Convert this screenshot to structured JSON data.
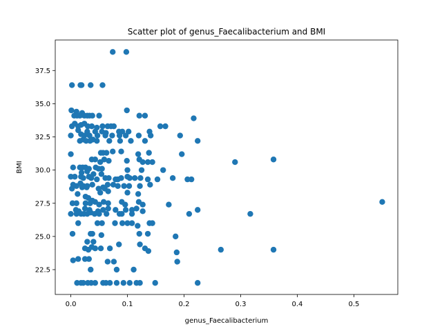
{
  "chart_data": {
    "type": "scatter",
    "title": "Scatter plot of genus_Faecalibacterium and BMI",
    "xlabel": "genus_Faecalibacterium",
    "ylabel": "BMI",
    "xlim": [
      -0.0275,
      0.5775
    ],
    "ylim": [
      20.63,
      39.8
    ],
    "xticks": [
      0.0,
      0.1,
      0.2,
      0.3,
      0.4,
      0.5
    ],
    "xtick_labels": [
      "0.0",
      "0.1",
      "0.2",
      "0.3",
      "0.4",
      "0.5"
    ],
    "yticks": [
      22.5,
      25.0,
      27.5,
      30.0,
      32.5,
      35.0,
      37.5
    ],
    "ytick_labels": [
      "22.5",
      "25.0",
      "27.5",
      "30.0",
      "32.5",
      "35.0",
      "37.5"
    ],
    "grid": false,
    "color": "#1f77b4",
    "series": [
      {
        "points": [
          [
            0.074,
            38.9
          ],
          [
            0.098,
            38.9
          ],
          [
            0.002,
            36.4
          ],
          [
            0.017,
            36.4
          ],
          [
            0.019,
            36.4
          ],
          [
            0.035,
            36.4
          ],
          [
            0.056,
            36.4
          ],
          [
            0.001,
            34.5
          ],
          [
            0.01,
            34.4
          ],
          [
            0.02,
            34.3
          ],
          [
            0.099,
            34.5
          ],
          [
            0.006,
            34.1
          ],
          [
            0.011,
            34.1
          ],
          [
            0.016,
            34.1
          ],
          [
            0.024,
            34.1
          ],
          [
            0.029,
            34.1
          ],
          [
            0.033,
            34.1
          ],
          [
            0.038,
            34.1
          ],
          [
            0.05,
            34.1
          ],
          [
            0.121,
            34.1
          ],
          [
            0.131,
            34.1
          ],
          [
            0.217,
            33.9
          ],
          [
            0.002,
            33.3
          ],
          [
            0.007,
            33.5
          ],
          [
            0.013,
            33.3
          ],
          [
            0.018,
            33.4
          ],
          [
            0.024,
            33.5
          ],
          [
            0.03,
            33.3
          ],
          [
            0.037,
            33.3
          ],
          [
            0.046,
            33.2
          ],
          [
            0.056,
            33.3
          ],
          [
            0.065,
            33.3
          ],
          [
            0.071,
            33.3
          ],
          [
            0.076,
            33.3
          ],
          [
            0.158,
            33.3
          ],
          [
            0.167,
            33.3
          ],
          [
            0.013,
            33.0
          ],
          [
            0.029,
            32.9
          ],
          [
            0.043,
            32.9
          ],
          [
            0.055,
            32.9
          ],
          [
            0.062,
            32.8
          ],
          [
            0.085,
            32.9
          ],
          [
            0.091,
            32.9
          ],
          [
            0.102,
            32.9
          ],
          [
            0.139,
            32.9
          ],
          [
            0.0,
            32.6
          ],
          [
            0.018,
            32.7
          ],
          [
            0.024,
            32.6
          ],
          [
            0.033,
            32.6
          ],
          [
            0.047,
            32.6
          ],
          [
            0.061,
            32.6
          ],
          [
            0.073,
            32.6
          ],
          [
            0.086,
            32.6
          ],
          [
            0.097,
            32.6
          ],
          [
            0.12,
            32.6
          ],
          [
            0.141,
            32.6
          ],
          [
            0.193,
            32.6
          ],
          [
            0.016,
            32.2
          ],
          [
            0.022,
            32.3
          ],
          [
            0.027,
            32.2
          ],
          [
            0.034,
            32.2
          ],
          [
            0.039,
            32.3
          ],
          [
            0.046,
            32.2
          ],
          [
            0.068,
            32.2
          ],
          [
            0.087,
            32.2
          ],
          [
            0.106,
            32.2
          ],
          [
            0.131,
            32.2
          ],
          [
            0.224,
            32.2
          ],
          [
            0.053,
            31.3
          ],
          [
            0.057,
            31.3
          ],
          [
            0.063,
            31.3
          ],
          [
            0.074,
            31.4
          ],
          [
            0.089,
            31.4
          ],
          [
            0.119,
            31.2
          ],
          [
            0.138,
            31.3
          ],
          [
            0.196,
            31.2
          ],
          [
            0.0,
            31.2
          ],
          [
            0.037,
            30.8
          ],
          [
            0.043,
            30.8
          ],
          [
            0.052,
            30.6
          ],
          [
            0.059,
            30.8
          ],
          [
            0.067,
            30.7
          ],
          [
            0.099,
            30.7
          ],
          [
            0.121,
            30.8
          ],
          [
            0.127,
            30.6
          ],
          [
            0.136,
            30.6
          ],
          [
            0.144,
            30.6
          ],
          [
            0.29,
            30.6
          ],
          [
            0.358,
            30.8
          ],
          [
            0.004,
            30.2
          ],
          [
            0.016,
            30.2
          ],
          [
            0.021,
            30.2
          ],
          [
            0.026,
            30.2
          ],
          [
            0.032,
            30.1
          ],
          [
            0.044,
            30.2
          ],
          [
            0.049,
            30.1
          ],
          [
            0.055,
            30.1
          ],
          [
            0.1,
            30.0
          ],
          [
            0.125,
            30.0
          ],
          [
            0.163,
            30.0
          ],
          [
            0.019,
            29.8
          ],
          [
            0.029,
            29.9
          ],
          [
            0.04,
            29.7
          ],
          [
            0.054,
            29.7
          ],
          [
            0.0,
            29.5
          ],
          [
            0.007,
            29.5
          ],
          [
            0.018,
            29.5
          ],
          [
            0.022,
            29.4
          ],
          [
            0.032,
            29.5
          ],
          [
            0.036,
            29.4
          ],
          [
            0.046,
            29.3
          ],
          [
            0.061,
            29.4
          ],
          [
            0.067,
            29.4
          ],
          [
            0.079,
            29.3
          ],
          [
            0.083,
            29.3
          ],
          [
            0.089,
            29.4
          ],
          [
            0.1,
            29.5
          ],
          [
            0.104,
            29.4
          ],
          [
            0.113,
            29.4
          ],
          [
            0.123,
            29.4
          ],
          [
            0.136,
            29.3
          ],
          [
            0.153,
            29.3
          ],
          [
            0.18,
            29.4
          ],
          [
            0.206,
            29.3
          ],
          [
            0.213,
            29.3
          ],
          [
            0.004,
            28.9
          ],
          [
            0.01,
            28.8
          ],
          [
            0.017,
            29.0
          ],
          [
            0.022,
            28.8
          ],
          [
            0.029,
            28.8
          ],
          [
            0.038,
            28.9
          ],
          [
            0.057,
            28.7
          ],
          [
            0.065,
            28.9
          ],
          [
            0.075,
            28.9
          ],
          [
            0.083,
            28.8
          ],
          [
            0.094,
            28.8
          ],
          [
            0.103,
            28.8
          ],
          [
            0.122,
            28.8
          ],
          [
            0.14,
            28.9
          ],
          [
            0.002,
            28.6
          ],
          [
            0.02,
            28.7
          ],
          [
            0.028,
            28.7
          ],
          [
            0.049,
            28.6
          ],
          [
            0.06,
            28.6
          ],
          [
            0.012,
            28.2
          ],
          [
            0.026,
            28.0
          ],
          [
            0.052,
            28.3
          ],
          [
            0.066,
            28.4
          ],
          [
            0.1,
            28.3
          ],
          [
            0.119,
            28.2
          ],
          [
            0.031,
            27.9
          ],
          [
            0.038,
            27.7
          ],
          [
            0.003,
            27.5
          ],
          [
            0.01,
            27.5
          ],
          [
            0.026,
            27.5
          ],
          [
            0.034,
            27.5
          ],
          [
            0.043,
            27.6
          ],
          [
            0.05,
            27.4
          ],
          [
            0.058,
            27.6
          ],
          [
            0.066,
            27.5
          ],
          [
            0.09,
            27.6
          ],
          [
            0.096,
            27.4
          ],
          [
            0.12,
            27.6
          ],
          [
            0.127,
            27.4
          ],
          [
            0.173,
            27.4
          ],
          [
            0.55,
            27.6
          ],
          [
            0.009,
            27.0
          ],
          [
            0.014,
            26.9
          ],
          [
            0.025,
            27.1
          ],
          [
            0.033,
            27.0
          ],
          [
            0.048,
            26.9
          ],
          [
            0.057,
            27.0
          ],
          [
            0.066,
            27.1
          ],
          [
            0.079,
            27.0
          ],
          [
            0.097,
            27.0
          ],
          [
            0.108,
            27.0
          ],
          [
            0.116,
            27.1
          ],
          [
            0.127,
            26.9
          ],
          [
            0.224,
            27.0
          ],
          [
            0.0,
            26.7
          ],
          [
            0.01,
            26.7
          ],
          [
            0.018,
            26.7
          ],
          [
            0.023,
            26.7
          ],
          [
            0.029,
            26.7
          ],
          [
            0.035,
            26.8
          ],
          [
            0.042,
            26.7
          ],
          [
            0.05,
            26.7
          ],
          [
            0.063,
            26.7
          ],
          [
            0.086,
            26.7
          ],
          [
            0.09,
            26.7
          ],
          [
            0.108,
            26.7
          ],
          [
            0.209,
            26.7
          ],
          [
            0.317,
            26.7
          ],
          [
            0.013,
            26.0
          ],
          [
            0.047,
            26.0
          ],
          [
            0.055,
            26.0
          ],
          [
            0.078,
            26.0
          ],
          [
            0.091,
            26.0
          ],
          [
            0.1,
            26.0
          ],
          [
            0.108,
            26.0
          ],
          [
            0.118,
            25.8
          ],
          [
            0.139,
            26.0
          ],
          [
            0.144,
            26.0
          ],
          [
            0.003,
            25.2
          ],
          [
            0.035,
            25.2
          ],
          [
            0.038,
            25.2
          ],
          [
            0.054,
            25.1
          ],
          [
            0.121,
            25.2
          ],
          [
            0.136,
            25.2
          ],
          [
            0.185,
            25.0
          ],
          [
            0.029,
            24.6
          ],
          [
            0.04,
            24.6
          ],
          [
            0.085,
            24.4
          ],
          [
            0.122,
            24.4
          ],
          [
            0.025,
            24.1
          ],
          [
            0.031,
            24.0
          ],
          [
            0.037,
            24.2
          ],
          [
            0.043,
            24.1
          ],
          [
            0.053,
            24.1
          ],
          [
            0.069,
            24.1
          ],
          [
            0.131,
            24.1
          ],
          [
            0.137,
            23.9
          ],
          [
            0.187,
            23.8
          ],
          [
            0.265,
            24.0
          ],
          [
            0.358,
            24.0
          ],
          [
            0.004,
            23.2
          ],
          [
            0.013,
            23.3
          ],
          [
            0.025,
            23.3
          ],
          [
            0.032,
            23.3
          ],
          [
            0.065,
            23.1
          ],
          [
            0.076,
            23.1
          ],
          [
            0.188,
            23.1
          ],
          [
            0.035,
            22.5
          ],
          [
            0.081,
            22.5
          ],
          [
            0.111,
            22.5
          ],
          [
            0.011,
            21.5
          ],
          [
            0.018,
            21.5
          ],
          [
            0.022,
            21.5
          ],
          [
            0.03,
            21.5
          ],
          [
            0.036,
            21.5
          ],
          [
            0.043,
            21.5
          ],
          [
            0.057,
            21.5
          ],
          [
            0.062,
            21.5
          ],
          [
            0.069,
            21.5
          ],
          [
            0.081,
            21.5
          ],
          [
            0.093,
            21.5
          ],
          [
            0.104,
            21.5
          ],
          [
            0.116,
            21.5
          ],
          [
            0.122,
            21.5
          ],
          [
            0.149,
            21.5
          ],
          [
            0.224,
            21.5
          ]
        ]
      }
    ]
  }
}
